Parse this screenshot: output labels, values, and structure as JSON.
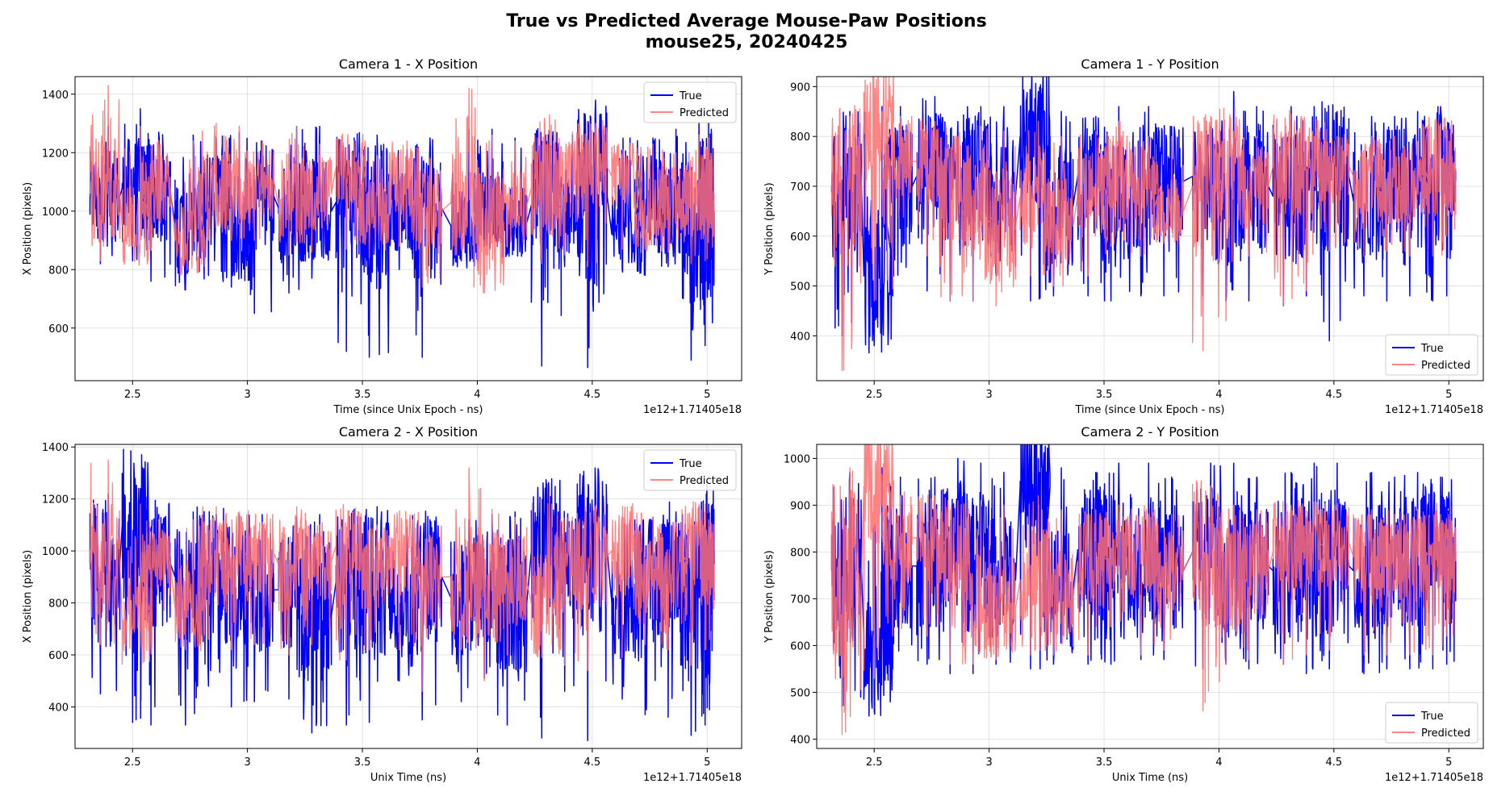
{
  "figure": {
    "title_line1": "True vs Predicted Average Mouse-Paw Positions",
    "title_line2": "mouse25, 20240425"
  },
  "colors": {
    "true": "#0000ff",
    "predicted": "#ff6f6f",
    "overlap": "#7f0080",
    "grid": "#b0b0b0"
  },
  "chart_data": [
    {
      "type": "line",
      "title": "Camera 1 - X Position",
      "xlabel": "Time (since Unix Epoch - ns)",
      "ylabel": "X Position (pixels)",
      "offset_label": "1e12+1.71405e18",
      "xlim": [
        2.25,
        5.15
      ],
      "ylim": [
        420,
        1460
      ],
      "xticks": [
        2.5,
        3.0,
        3.5,
        4.0,
        4.5,
        5.0
      ],
      "yticks": [
        600,
        800,
        1000,
        1200,
        1400
      ],
      "legend_loc": "upper right",
      "grid": true,
      "series": [
        {
          "name": "True",
          "color": "#0000ff",
          "x": [
            2.38,
            2.52,
            2.6,
            2.75,
            2.85,
            2.95,
            3.05,
            3.2,
            3.3,
            3.45,
            3.55,
            3.68,
            3.78,
            3.95,
            4.05,
            4.15,
            4.3,
            4.4,
            4.5,
            4.65,
            4.75,
            4.85,
            4.95,
            5.0
          ],
          "y": [
            1050,
            1080,
            1060,
            960,
            1050,
            930,
            1050,
            1010,
            1000,
            1030,
            980,
            1000,
            1010,
            950,
            1000,
            960,
            1020,
            1000,
            1050,
            920,
            1050,
            1000,
            930,
            1000
          ],
          "min": [
            820,
            830,
            760,
            730,
            780,
            740,
            650,
            720,
            770,
            520,
            500,
            800,
            500,
            830,
            880,
            870,
            470,
            810,
            465,
            800,
            780,
            810,
            490,
            540
          ],
          "max": [
            1290,
            1350,
            1270,
            1260,
            1250,
            1270,
            1240,
            1290,
            1290,
            1250,
            1260,
            1210,
            1250,
            1280,
            1280,
            1250,
            1270,
            1260,
            1380,
            1250,
            1250,
            1280,
            1300,
            1300
          ]
        },
        {
          "name": "Predicted",
          "color": "#ff6f6f",
          "x": [
            2.38,
            2.52,
            2.6,
            2.75,
            2.85,
            2.95,
            3.05,
            3.2,
            3.3,
            3.45,
            3.55,
            3.68,
            3.78,
            3.95,
            4.05,
            4.15,
            4.3,
            4.4,
            4.5,
            4.65,
            4.75,
            4.85,
            4.95,
            5.0
          ],
          "y": [
            1060,
            950,
            1080,
            900,
            1070,
            1080,
            1100,
            1020,
            1060,
            1150,
            1000,
            1100,
            1000,
            1030,
            960,
            1020,
            1080,
            1100,
            1150,
            1120,
            980,
            1050,
            1040,
            1060
          ],
          "min": [
            830,
            880,
            900,
            880,
            900,
            900,
            900,
            850,
            860,
            870,
            840,
            880,
            740,
            870,
            720,
            880,
            820,
            850,
            810,
            870,
            870,
            860,
            820,
            830
          ],
          "max": [
            1430,
            1290,
            1240,
            1240,
            1300,
            1290,
            1240,
            1290,
            1230,
            1240,
            1190,
            1240,
            1180,
            1420,
            1260,
            1240,
            1330,
            1270,
            1300,
            1220,
            1230,
            1200,
            1260,
            1250
          ]
        }
      ]
    },
    {
      "type": "line",
      "title": "Camera 1 - Y Position",
      "xlabel": "Time (since Unix Epoch - ns)",
      "ylabel": "Y Position (pixels)",
      "offset_label": "1e12+1.71405e18",
      "xlim": [
        2.25,
        5.15
      ],
      "ylim": [
        310,
        920
      ],
      "xticks": [
        2.5,
        3.0,
        3.5,
        4.0,
        4.5,
        5.0
      ],
      "yticks": [
        400,
        500,
        600,
        700,
        800,
        900
      ],
      "legend_loc": "lower right",
      "grid": true,
      "series": [
        {
          "name": "True",
          "color": "#0000ff",
          "x": [
            2.38,
            2.52,
            2.6,
            2.75,
            2.85,
            2.95,
            3.05,
            3.2,
            3.3,
            3.45,
            3.55,
            3.68,
            3.78,
            3.95,
            4.05,
            4.15,
            4.3,
            4.4,
            4.5,
            4.65,
            4.75,
            4.85,
            4.95,
            5.0
          ],
          "y": [
            700,
            520,
            700,
            720,
            700,
            720,
            680,
            800,
            660,
            720,
            680,
            700,
            710,
            720,
            680,
            700,
            680,
            680,
            720,
            670,
            700,
            700,
            720,
            730
          ],
          "min": [
            400,
            380,
            480,
            490,
            470,
            470,
            520,
            470,
            480,
            480,
            470,
            480,
            480,
            480,
            470,
            470,
            460,
            480,
            390,
            480,
            470,
            480,
            470,
            480
          ],
          "max": [
            850,
            860,
            860,
            880,
            830,
            860,
            860,
            890,
            850,
            840,
            860,
            860,
            820,
            820,
            890,
            860,
            860,
            860,
            850,
            840,
            840,
            850,
            860,
            800
          ]
        },
        {
          "name": "Predicted",
          "color": "#ff6f6f",
          "x": [
            2.38,
            2.52,
            2.6,
            2.75,
            2.85,
            2.95,
            3.05,
            3.2,
            3.3,
            3.45,
            3.55,
            3.68,
            3.78,
            3.95,
            4.05,
            4.15,
            4.3,
            4.4,
            4.5,
            4.65,
            4.75,
            4.85,
            4.95,
            5.0
          ],
          "y": [
            700,
            830,
            750,
            750,
            700,
            640,
            620,
            680,
            620,
            680,
            720,
            700,
            650,
            700,
            740,
            700,
            740,
            745,
            740,
            720,
            700,
            700,
            760,
            700
          ],
          "min": [
            330,
            470,
            560,
            560,
            470,
            470,
            460,
            520,
            500,
            520,
            580,
            560,
            590,
            370,
            430,
            560,
            460,
            490,
            570,
            560,
            570,
            560,
            560,
            600
          ],
          "max": [
            840,
            850,
            840,
            830,
            800,
            820,
            810,
            830,
            800,
            810,
            830,
            800,
            800,
            840,
            810,
            800,
            800,
            800,
            800,
            800,
            800,
            790,
            800,
            780
          ]
        }
      ]
    },
    {
      "type": "line",
      "title": "Camera 2 - X Position",
      "xlabel": "Unix Time (ns)",
      "ylabel": "X Position (pixels)",
      "offset_label": "1e12+1.71405e18",
      "xlim": [
        2.25,
        5.15
      ],
      "ylim": [
        240,
        1410
      ],
      "xticks": [
        2.5,
        3.0,
        3.5,
        4.0,
        4.5,
        5.0
      ],
      "yticks": [
        400,
        600,
        800,
        1000,
        1200,
        1400
      ],
      "legend_loc": "upper right",
      "grid": true,
      "series": [
        {
          "name": "True",
          "color": "#0000ff",
          "x": [
            2.38,
            2.52,
            2.6,
            2.75,
            2.85,
            2.95,
            3.05,
            3.2,
            3.3,
            3.45,
            3.55,
            3.68,
            3.78,
            3.95,
            4.05,
            4.15,
            4.3,
            4.4,
            4.5,
            4.65,
            4.75,
            4.85,
            4.95,
            5.0
          ],
          "y": [
            950,
            1100,
            950,
            900,
            950,
            860,
            850,
            850,
            750,
            880,
            860,
            780,
            900,
            820,
            860,
            800,
            1000,
            950,
            1000,
            800,
            900,
            930,
            820,
            1000
          ],
          "min": [
            450,
            340,
            330,
            330,
            480,
            400,
            420,
            430,
            300,
            330,
            340,
            500,
            350,
            420,
            510,
            330,
            280,
            460,
            270,
            430,
            370,
            360,
            290,
            330
          ],
          "max": [
            1220,
            1240,
            1140,
            1150,
            1140,
            1140,
            1140,
            1130,
            1140,
            1160,
            1170,
            1090,
            1120,
            1120,
            1140,
            1150,
            1130,
            1100,
            1260,
            1120,
            1130,
            1150,
            1170,
            1180
          ]
        },
        {
          "name": "Predicted",
          "color": "#ff6f6f",
          "x": [
            2.38,
            2.52,
            2.6,
            2.75,
            2.85,
            2.95,
            3.05,
            3.2,
            3.3,
            3.45,
            3.55,
            3.68,
            3.78,
            3.95,
            4.05,
            4.15,
            4.3,
            4.4,
            4.5,
            4.65,
            4.75,
            4.85,
            4.95,
            5.0
          ],
          "y": [
            950,
            720,
            950,
            780,
            960,
            980,
            990,
            950,
            960,
            1020,
            930,
            990,
            900,
            900,
            860,
            880,
            800,
            950,
            980,
            1000,
            900,
            950,
            1000,
            950
          ],
          "min": [
            640,
            700,
            740,
            620,
            660,
            620,
            640,
            600,
            640,
            580,
            620,
            620,
            460,
            620,
            500,
            600,
            590,
            560,
            540,
            590,
            640,
            620,
            560,
            620
          ],
          "max": [
            1350,
            1180,
            1120,
            1120,
            1170,
            1150,
            1110,
            1170,
            1100,
            1100,
            1100,
            1120,
            1060,
            1320,
            1160,
            1130,
            1230,
            1130,
            1140,
            1150,
            1130,
            1110,
            1180,
            1120
          ]
        }
      ]
    },
    {
      "type": "line",
      "title": "Camera 2 - Y Position",
      "xlabel": "Unix Time (ns)",
      "ylabel": "Y Position (pixels)",
      "offset_label": "1e12+1.71405e18",
      "xlim": [
        2.25,
        5.15
      ],
      "ylim": [
        380,
        1030
      ],
      "xticks": [
        2.5,
        3.0,
        3.5,
        4.0,
        4.5,
        5.0
      ],
      "yticks": [
        400,
        500,
        600,
        700,
        800,
        900,
        1000
      ],
      "legend_loc": "lower right",
      "grid": true,
      "series": [
        {
          "name": "True",
          "color": "#0000ff",
          "x": [
            2.38,
            2.52,
            2.6,
            2.75,
            2.85,
            2.95,
            3.05,
            3.2,
            3.3,
            3.45,
            3.55,
            3.68,
            3.78,
            3.95,
            4.05,
            4.15,
            4.3,
            4.4,
            4.5,
            4.65,
            4.75,
            4.85,
            4.95,
            5.0
          ],
          "y": [
            760,
            620,
            770,
            770,
            800,
            780,
            740,
            940,
            720,
            800,
            780,
            780,
            760,
            800,
            760,
            770,
            760,
            800,
            770,
            760,
            770,
            780,
            820,
            800
          ],
          "min": [
            470,
            460,
            550,
            560,
            540,
            540,
            560,
            550,
            560,
            560,
            560,
            570,
            570,
            550,
            560,
            550,
            560,
            540,
            550,
            540,
            550,
            550,
            550,
            560
          ],
          "max": [
            970,
            980,
            960,
            960,
            1000,
            990,
            970,
            1000,
            980,
            970,
            990,
            990,
            960,
            990,
            990,
            960,
            970,
            990,
            990,
            970,
            960,
            970,
            960,
            880
          ]
        },
        {
          "name": "Predicted",
          "color": "#ff6f6f",
          "x": [
            2.38,
            2.52,
            2.6,
            2.75,
            2.85,
            2.95,
            3.05,
            3.2,
            3.3,
            3.45,
            3.55,
            3.68,
            3.78,
            3.95,
            4.05,
            4.15,
            4.3,
            4.4,
            4.5,
            4.65,
            4.75,
            4.85,
            4.95,
            5.0
          ],
          "y": [
            760,
            940,
            830,
            830,
            800,
            700,
            680,
            740,
            700,
            780,
            800,
            800,
            760,
            800,
            740,
            760,
            800,
            810,
            820,
            790,
            790,
            790,
            810,
            780
          ],
          "min": [
            410,
            530,
            620,
            620,
            560,
            560,
            570,
            580,
            580,
            580,
            640,
            580,
            590,
            460,
            560,
            570,
            560,
            580,
            590,
            580,
            580,
            580,
            580,
            620
          ],
          "max": [
            980,
            940,
            920,
            920,
            910,
            910,
            900,
            920,
            890,
            890,
            900,
            880,
            880,
            940,
            900,
            890,
            900,
            880,
            890,
            890,
            880,
            890,
            880,
            870
          ]
        }
      ]
    }
  ]
}
